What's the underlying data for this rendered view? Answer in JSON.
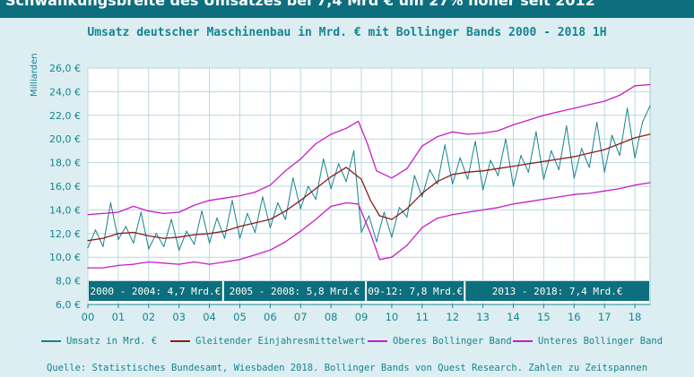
{
  "banner": {
    "text": "Schwankungsbreite des Umsatzes bei 7,4 Mrd € um 27% höher seit 2012"
  },
  "colors": {
    "umsatz": "#17828e",
    "mittel": "#8b1c1c",
    "oberes": "#c51ec8",
    "unteres": "#c51ec8",
    "banner_bg": "#0d6f7d",
    "box_bg": "#0d6f7d",
    "text": "#16848f"
  },
  "source": "Quelle: Statistisches Bundesamt, Wiesbaden 2018. Bollinger Bands von Quest Research. Zahlen zu Zeitspannen",
  "chart_data": {
    "type": "line",
    "title": "Umsatz deutscher Maschinenbau in Mrd. € mit Bollinger Bands 2000 - 2018 1H",
    "ylabel": "Milliarden",
    "xlabel": "",
    "ylim": [
      6,
      26
    ],
    "xlim": [
      2000,
      2018.5
    ],
    "grid": true,
    "legend_position": "bottom",
    "y_ticks": [
      "6,0 €",
      "8,0 €",
      "10,0 €",
      "12,0 €",
      "14,0 €",
      "16,0 €",
      "18,0 €",
      "20,0 €",
      "22,0 €",
      "24,0 €",
      "26,0 €"
    ],
    "x_ticks": [
      "00",
      "01",
      "02",
      "03",
      "04",
      "05",
      "06",
      "07",
      "08",
      "09",
      "10",
      "11",
      "12",
      "13",
      "14",
      "15",
      "16",
      "17",
      "18"
    ],
    "period_boxes": [
      {
        "label": "2000 - 2004: 4,7 Mrd.€",
        "from": 2000,
        "to": 2004.45
      },
      {
        "label": "2005 - 2008: 5,8 Mrd.€",
        "from": 2004.45,
        "to": 2009.15
      },
      {
        "label": "09-12: 7,8 Mrd.€",
        "from": 2009.15,
        "to": 2012.4
      },
      {
        "label": "2013 - 2018: 7,4 Mrd.€",
        "from": 2012.4,
        "to": 2018.5
      }
    ],
    "series": [
      {
        "name": "Umsatz in Mrd. €",
        "key": "umsatz",
        "points": [
          [
            2000,
            10.8
          ],
          [
            2000.25,
            12.3
          ],
          [
            2000.5,
            10.9
          ],
          [
            2000.75,
            14.6
          ],
          [
            2001,
            11.5
          ],
          [
            2001.25,
            12.6
          ],
          [
            2001.5,
            11.2
          ],
          [
            2001.75,
            13.8
          ],
          [
            2002,
            10.7
          ],
          [
            2002.25,
            12.0
          ],
          [
            2002.5,
            10.9
          ],
          [
            2002.75,
            13.2
          ],
          [
            2003,
            10.6
          ],
          [
            2003.25,
            12.2
          ],
          [
            2003.5,
            11.1
          ],
          [
            2003.75,
            13.9
          ],
          [
            2004,
            11.2
          ],
          [
            2004.25,
            13.3
          ],
          [
            2004.5,
            11.6
          ],
          [
            2004.75,
            14.8
          ],
          [
            2005,
            11.6
          ],
          [
            2005.25,
            13.7
          ],
          [
            2005.5,
            12.1
          ],
          [
            2005.75,
            15.1
          ],
          [
            2006,
            12.5
          ],
          [
            2006.25,
            14.6
          ],
          [
            2006.5,
            13.2
          ],
          [
            2006.75,
            16.7
          ],
          [
            2007,
            14.1
          ],
          [
            2007.25,
            16.0
          ],
          [
            2007.5,
            14.9
          ],
          [
            2007.75,
            18.3
          ],
          [
            2008,
            15.8
          ],
          [
            2008.25,
            17.9
          ],
          [
            2008.5,
            16.4
          ],
          [
            2008.75,
            19.0
          ],
          [
            2009,
            12.1
          ],
          [
            2009.25,
            13.5
          ],
          [
            2009.5,
            11.3
          ],
          [
            2009.75,
            13.8
          ],
          [
            2010,
            11.7
          ],
          [
            2010.25,
            14.2
          ],
          [
            2010.5,
            13.4
          ],
          [
            2010.75,
            16.9
          ],
          [
            2011,
            15.1
          ],
          [
            2011.25,
            17.4
          ],
          [
            2011.5,
            16.2
          ],
          [
            2011.75,
            19.5
          ],
          [
            2012,
            16.2
          ],
          [
            2012.25,
            18.4
          ],
          [
            2012.5,
            16.6
          ],
          [
            2012.75,
            19.8
          ],
          [
            2013,
            15.7
          ],
          [
            2013.25,
            18.2
          ],
          [
            2013.5,
            16.9
          ],
          [
            2013.75,
            20.0
          ],
          [
            2014,
            16.0
          ],
          [
            2014.25,
            18.6
          ],
          [
            2014.5,
            17.2
          ],
          [
            2014.75,
            20.6
          ],
          [
            2015,
            16.6
          ],
          [
            2015.25,
            19.0
          ],
          [
            2015.5,
            17.4
          ],
          [
            2015.75,
            21.1
          ],
          [
            2016,
            16.7
          ],
          [
            2016.25,
            19.2
          ],
          [
            2016.5,
            17.6
          ],
          [
            2016.75,
            21.4
          ],
          [
            2017,
            17.2
          ],
          [
            2017.25,
            20.3
          ],
          [
            2017.5,
            18.6
          ],
          [
            2017.75,
            22.6
          ],
          [
            2018,
            18.4
          ],
          [
            2018.25,
            21.4
          ],
          [
            2018.5,
            22.8
          ]
        ]
      },
      {
        "name": "Gleitender Einjahresmittelwert",
        "key": "mittel",
        "points": [
          [
            2000,
            11.4
          ],
          [
            2000.5,
            11.6
          ],
          [
            2001,
            12.0
          ],
          [
            2001.5,
            12.1
          ],
          [
            2002,
            11.8
          ],
          [
            2002.5,
            11.6
          ],
          [
            2003,
            11.7
          ],
          [
            2003.5,
            11.9
          ],
          [
            2004,
            12.0
          ],
          [
            2004.5,
            12.2
          ],
          [
            2005,
            12.6
          ],
          [
            2005.5,
            12.9
          ],
          [
            2006,
            13.2
          ],
          [
            2006.5,
            13.9
          ],
          [
            2007,
            14.8
          ],
          [
            2007.5,
            15.8
          ],
          [
            2008,
            16.8
          ],
          [
            2008.5,
            17.6
          ],
          [
            2009,
            16.6
          ],
          [
            2009.3,
            14.8
          ],
          [
            2009.6,
            13.5
          ],
          [
            2010,
            13.2
          ],
          [
            2010.5,
            14.1
          ],
          [
            2011,
            15.4
          ],
          [
            2011.5,
            16.4
          ],
          [
            2012,
            17.0
          ],
          [
            2012.5,
            17.2
          ],
          [
            2013,
            17.3
          ],
          [
            2013.5,
            17.5
          ],
          [
            2014,
            17.7
          ],
          [
            2014.5,
            17.9
          ],
          [
            2015,
            18.1
          ],
          [
            2015.5,
            18.3
          ],
          [
            2016,
            18.5
          ],
          [
            2016.5,
            18.8
          ],
          [
            2017,
            19.1
          ],
          [
            2017.5,
            19.6
          ],
          [
            2018,
            20.1
          ],
          [
            2018.5,
            20.4
          ]
        ]
      },
      {
        "name": "Oberes Bollinger Band",
        "key": "oberes",
        "points": [
          [
            2000,
            13.6
          ],
          [
            2000.5,
            13.7
          ],
          [
            2001,
            13.8
          ],
          [
            2001.5,
            14.3
          ],
          [
            2002,
            13.9
          ],
          [
            2002.5,
            13.7
          ],
          [
            2003,
            13.8
          ],
          [
            2003.5,
            14.4
          ],
          [
            2004,
            14.8
          ],
          [
            2004.5,
            15.0
          ],
          [
            2005,
            15.2
          ],
          [
            2005.5,
            15.5
          ],
          [
            2006,
            16.1
          ],
          [
            2006.5,
            17.3
          ],
          [
            2007,
            18.3
          ],
          [
            2007.5,
            19.6
          ],
          [
            2008,
            20.4
          ],
          [
            2008.5,
            20.9
          ],
          [
            2008.9,
            21.5
          ],
          [
            2009.2,
            19.6
          ],
          [
            2009.5,
            17.3
          ],
          [
            2010,
            16.7
          ],
          [
            2010.5,
            17.5
          ],
          [
            2011,
            19.4
          ],
          [
            2011.5,
            20.2
          ],
          [
            2012,
            20.6
          ],
          [
            2012.5,
            20.4
          ],
          [
            2013,
            20.5
          ],
          [
            2013.5,
            20.7
          ],
          [
            2014,
            21.2
          ],
          [
            2014.5,
            21.6
          ],
          [
            2015,
            22.0
          ],
          [
            2015.5,
            22.3
          ],
          [
            2016,
            22.6
          ],
          [
            2016.5,
            22.9
          ],
          [
            2017,
            23.2
          ],
          [
            2017.5,
            23.7
          ],
          [
            2018,
            24.5
          ],
          [
            2018.5,
            24.6
          ]
        ]
      },
      {
        "name": "Unteres Bollinger Band",
        "key": "unteres",
        "points": [
          [
            2000,
            9.1
          ],
          [
            2000.5,
            9.1
          ],
          [
            2001,
            9.3
          ],
          [
            2001.5,
            9.4
          ],
          [
            2002,
            9.6
          ],
          [
            2002.5,
            9.5
          ],
          [
            2003,
            9.4
          ],
          [
            2003.5,
            9.6
          ],
          [
            2004,
            9.4
          ],
          [
            2004.5,
            9.6
          ],
          [
            2005,
            9.8
          ],
          [
            2005.5,
            10.2
          ],
          [
            2006,
            10.6
          ],
          [
            2006.5,
            11.3
          ],
          [
            2007,
            12.2
          ],
          [
            2007.5,
            13.2
          ],
          [
            2008,
            14.3
          ],
          [
            2008.5,
            14.6
          ],
          [
            2008.9,
            14.5
          ],
          [
            2009.3,
            12.0
          ],
          [
            2009.6,
            9.8
          ],
          [
            2010,
            10.0
          ],
          [
            2010.5,
            11.0
          ],
          [
            2011,
            12.5
          ],
          [
            2011.5,
            13.3
          ],
          [
            2012,
            13.6
          ],
          [
            2012.5,
            13.8
          ],
          [
            2013,
            14.0
          ],
          [
            2013.5,
            14.2
          ],
          [
            2014,
            14.5
          ],
          [
            2014.5,
            14.7
          ],
          [
            2015,
            14.9
          ],
          [
            2015.5,
            15.1
          ],
          [
            2016,
            15.3
          ],
          [
            2016.5,
            15.4
          ],
          [
            2017,
            15.6
          ],
          [
            2017.5,
            15.8
          ],
          [
            2018,
            16.1
          ],
          [
            2018.5,
            16.3
          ]
        ]
      }
    ]
  }
}
